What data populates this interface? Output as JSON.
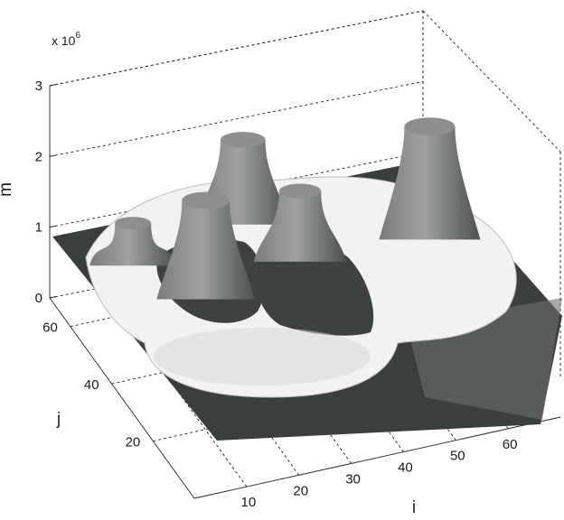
{
  "chart_data": {
    "type": "surface3d",
    "title": "",
    "xlabel": "i",
    "ylabel": "j",
    "zlabel": "m",
    "z_multiplier": "x 10",
    "z_multiplier_exponent": "6",
    "x_ticks": [
      "10",
      "20",
      "30",
      "40",
      "50",
      "60"
    ],
    "y_ticks": [
      "20",
      "40",
      "60"
    ],
    "z_ticks": [
      "0",
      "1",
      "2",
      "3"
    ],
    "xlim": [
      0,
      70
    ],
    "ylim": [
      0,
      70
    ],
    "zlim": [
      0,
      3
    ],
    "grid": true,
    "colormap": "gray",
    "base_level": 0.55,
    "plateau_level": 0.9,
    "peaks": [
      {
        "i": 10,
        "j": 55,
        "height": 1.5
      },
      {
        "i": 33,
        "j": 60,
        "height": 2.1
      },
      {
        "i": 62,
        "j": 43,
        "height": 2.5
      },
      {
        "i": 18,
        "j": 40,
        "height": 2.3
      },
      {
        "i": 38,
        "j": 45,
        "height": 1.9
      }
    ]
  }
}
